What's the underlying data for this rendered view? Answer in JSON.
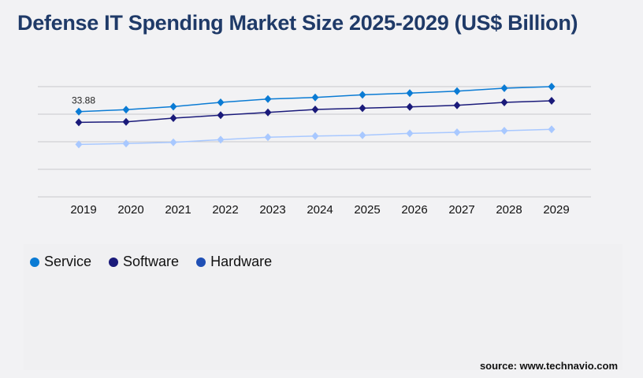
{
  "title": "Defense IT Spending Market Size 2025-2029 (US$ Billion)",
  "source": "source: www.technavio.com",
  "chart_data": {
    "type": "line",
    "title": "Defense IT Spending Market Size 2025-2029 (US$ Billion)",
    "x": [
      "2019",
      "2020",
      "2021",
      "2022",
      "2023",
      "2024",
      "2025",
      "2026",
      "2027",
      "2028",
      "2029"
    ],
    "ylim": [
      0,
      43.8
    ],
    "grid": true,
    "legend": "bottom-left",
    "annotations": [
      {
        "series": "Service",
        "x": "2019",
        "text": "33.88"
      }
    ],
    "series": [
      {
        "name": "Service",
        "color": "#0a7bd4",
        "marker_color": "#0a7bd4",
        "values": [
          33.88,
          34.63,
          35.88,
          37.54,
          38.88,
          39.51,
          40.57,
          41.2,
          42.01,
          43.17,
          43.79
        ]
      },
      {
        "name": "Software",
        "color": "#1a1a7a",
        "marker_color": "#1a1a7a",
        "values": [
          29.62,
          29.81,
          31.28,
          32.44,
          33.56,
          34.72,
          35.25,
          35.75,
          36.38,
          37.54,
          38.16
        ]
      },
      {
        "name": "Hardware",
        "color": "#a8c8ff",
        "marker_color": "#1f4fb5",
        "values": [
          20.86,
          21.18,
          21.68,
          22.74,
          23.68,
          24.18,
          24.49,
          25.24,
          25.65,
          26.28,
          26.81
        ]
      }
    ]
  }
}
